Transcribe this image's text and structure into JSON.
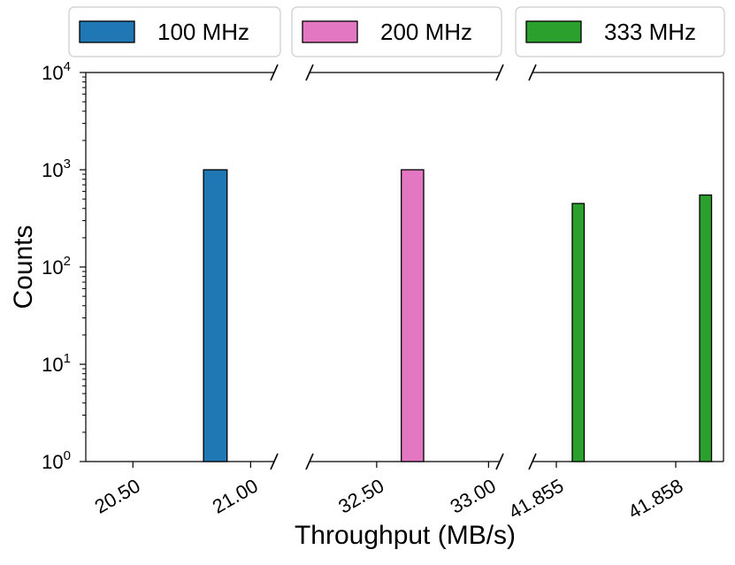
{
  "chart_data": {
    "type": "bar",
    "y_scale": "log",
    "ylim": [
      1,
      10000
    ],
    "xlabel": "Throughput (MB/s)",
    "ylabel": "Counts",
    "yticks": [
      {
        "value": 1,
        "base": "10",
        "exp": "0"
      },
      {
        "value": 10,
        "base": "10",
        "exp": "1"
      },
      {
        "value": 100,
        "base": "10",
        "exp": "2"
      },
      {
        "value": 1000,
        "base": "10",
        "exp": "3"
      },
      {
        "value": 10000,
        "base": "10",
        "exp": "4"
      }
    ],
    "x_axis_broken": true,
    "legend_placement": "top (above plot, three boxes)",
    "panels": [
      {
        "xlim": [
          20.3,
          21.1
        ],
        "xticks": [
          {
            "value": 20.5,
            "label": "20.50"
          },
          {
            "value": 21.0,
            "label": "21.00"
          }
        ]
      },
      {
        "xlim": [
          32.2,
          33.05
        ],
        "xticks": [
          {
            "value": 32.5,
            "label": "32.50"
          },
          {
            "value": 33.0,
            "label": "33.00"
          }
        ]
      },
      {
        "xlim": [
          41.8544,
          41.8592
        ],
        "xticks": [
          {
            "value": 41.855,
            "label": "41.855"
          },
          {
            "value": 41.858,
            "label": "41.858"
          }
        ]
      }
    ],
    "series": [
      {
        "name": "100 MHz",
        "color": "#1f77b4",
        "bars": [
          {
            "panel": 0,
            "x0": 20.8,
            "x1": 20.9,
            "count": 1000
          }
        ]
      },
      {
        "name": "200 MHz",
        "color": "#e377c2",
        "bars": [
          {
            "panel": 1,
            "x0": 32.61,
            "x1": 32.71,
            "count": 1000
          }
        ]
      },
      {
        "name": "333 MHz",
        "color": "#2ca02c",
        "bars": [
          {
            "panel": 2,
            "x0": 41.8554,
            "x1": 41.8557,
            "count": 450
          },
          {
            "panel": 2,
            "x0": 41.8586,
            "x1": 41.8589,
            "count": 550
          }
        ]
      }
    ]
  }
}
